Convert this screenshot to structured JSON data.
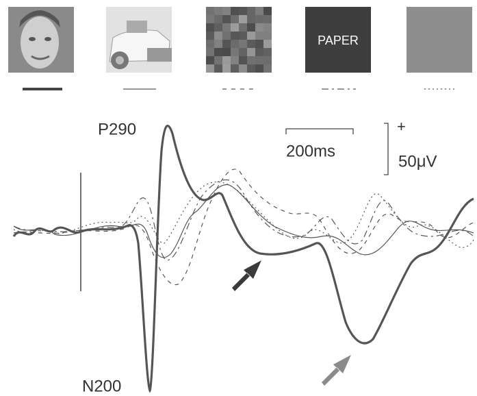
{
  "stimulus_label": "PAPER",
  "peaks": {
    "positive": "P290",
    "negative": "N200"
  },
  "scale_bar": {
    "time": "200ms",
    "polarity": "+",
    "amplitude": "50μV"
  }
}
